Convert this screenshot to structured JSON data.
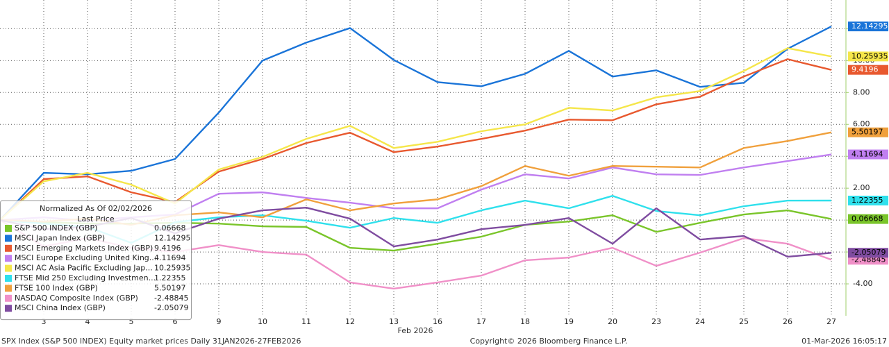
{
  "chart_data": {
    "type": "line",
    "legend_title": "Normalized As Of 02/02/2026",
    "legend_value_header": "Last Price",
    "xlabel": "Feb 2026",
    "footer_left": "SPX Index (S&P 500 INDEX) Equity market prices Daily 31JAN2026-27FEB2026",
    "footer_center": "Copyright© 2026 Bloomberg Finance L.P.",
    "footer_right": "01-Mar-2026 16:05:17",
    "categories": [
      null,
      "3",
      "4",
      "5",
      "6",
      "9",
      "10",
      "11",
      "12",
      "13",
      "16",
      "17",
      "18",
      "19",
      "20",
      "23",
      "24",
      "25",
      "26",
      "27"
    ],
    "ylim": [
      -6,
      13.8
    ],
    "yticks": [
      {
        "value": -4,
        "label": "-4.00"
      },
      {
        "value": -2,
        "label": "-2.00"
      },
      {
        "value": 0,
        "label": "0.00"
      },
      {
        "value": 2,
        "label": "2.00"
      },
      {
        "value": 4,
        "label": "4.00"
      },
      {
        "value": 6,
        "label": "6.00"
      },
      {
        "value": 8,
        "label": "8.00"
      },
      {
        "value": 10,
        "label": "10.00"
      },
      {
        "value": 12,
        "label": "12.00"
      }
    ],
    "grid": true,
    "legend_position": "lower left",
    "series": [
      {
        "name": "S&P 500 INDEX (GBP)",
        "color": "#7ac52a",
        "values": [
          0,
          -0.13,
          -0.22,
          -0.22,
          -0.17,
          -0.22,
          -0.39,
          -0.43,
          -1.74,
          -1.91,
          -1.48,
          -1.04,
          -0.3,
          -0.09,
          0.3,
          -0.74,
          -0.17,
          0.35,
          0.61,
          0.06668
        ]
      },
      {
        "name": "MSCI Japan Index (GBP)",
        "color": "#1a74d8",
        "values": [
          0,
          2.96,
          2.87,
          3.09,
          3.83,
          6.74,
          10.0,
          11.13,
          12.04,
          10.04,
          8.65,
          8.39,
          9.17,
          10.61,
          9.0,
          9.39,
          8.35,
          8.61,
          10.74,
          12.14295
        ]
      },
      {
        "name": "MSCI Emerging Markets Index (GBP)",
        "color": "#e8592f",
        "values": [
          0,
          2.57,
          2.74,
          1.74,
          1.13,
          3.04,
          3.83,
          4.83,
          5.48,
          4.26,
          4.61,
          5.09,
          5.61,
          6.3,
          6.26,
          7.26,
          7.74,
          9.0,
          10.09,
          9.4196
        ]
      },
      {
        "name": "MSCI Europe Excluding United King...",
        "color": "#c07ff0",
        "values": [
          0,
          0.17,
          -0.04,
          0.17,
          0.35,
          1.65,
          1.74,
          1.39,
          1.09,
          0.74,
          0.74,
          1.91,
          2.87,
          2.61,
          3.3,
          2.87,
          2.83,
          3.3,
          3.7,
          4.11694
        ]
      },
      {
        "name": "MSCI AC Asia Pacific Excluding Jap...",
        "color": "#f5e64a",
        "values": [
          0,
          2.43,
          2.96,
          2.22,
          1.04,
          3.17,
          3.96,
          5.09,
          5.91,
          4.52,
          4.91,
          5.57,
          6.0,
          7.04,
          6.87,
          7.7,
          8.09,
          9.35,
          10.78,
          10.25935
        ]
      },
      {
        "name": "FTSE Mid 250 Excluding Investmen...",
        "color": "#2fe0ec",
        "values": [
          0,
          -0.22,
          -0.43,
          -1.43,
          -0.13,
          0.17,
          0.3,
          -0.04,
          -0.48,
          0.13,
          -0.17,
          0.61,
          1.22,
          0.74,
          1.52,
          0.57,
          0.3,
          0.87,
          1.22,
          1.22355
        ]
      },
      {
        "name": "FTSE 100 Index (GBP)",
        "color": "#f0a03c",
        "values": [
          0,
          -0.09,
          0.09,
          -0.3,
          0.3,
          0.48,
          0.17,
          1.3,
          0.61,
          1.04,
          1.3,
          2.13,
          3.39,
          2.78,
          3.39,
          3.35,
          3.3,
          4.52,
          4.96,
          5.50197
        ]
      },
      {
        "name": "NASDAQ Composite Index (GBP)",
        "color": "#f090c8",
        "values": [
          0,
          -1.65,
          -1.13,
          -1.74,
          -2.0,
          -1.57,
          -2.0,
          -2.17,
          -3.91,
          -4.3,
          -3.91,
          -3.48,
          -2.52,
          -2.35,
          -1.74,
          -2.87,
          -2.04,
          -1.13,
          -1.48,
          -2.48845
        ]
      },
      {
        "name": "MSCI China Index (GBP)",
        "color": "#7f4ca0",
        "values": [
          0,
          -0.57,
          -0.43,
          0.13,
          -0.83,
          0.09,
          0.61,
          0.78,
          0.09,
          -1.65,
          -1.22,
          -0.57,
          -0.3,
          0.13,
          -1.48,
          0.74,
          -1.22,
          -1.0,
          -2.3,
          -2.05079
        ]
      }
    ]
  }
}
